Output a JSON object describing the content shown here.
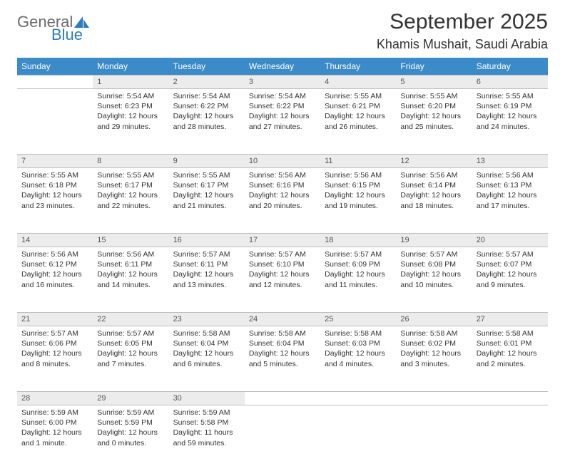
{
  "logo": {
    "word1": "General",
    "word2": "Blue",
    "color1": "#6b6b6b",
    "color2": "#2f7bbf"
  },
  "title": "September 2025",
  "location": "Khamis Mushait, Saudi Arabia",
  "colors": {
    "header_bg": "#3b8bc8",
    "header_text": "#ffffff",
    "daynum_bg": "#ececec",
    "border": "#bfbfbf",
    "body_text": "#333333"
  },
  "weekdays": [
    "Sunday",
    "Monday",
    "Tuesday",
    "Wednesday",
    "Thursday",
    "Friday",
    "Saturday"
  ],
  "weeks": [
    [
      null,
      {
        "d": "1",
        "sr": "5:54 AM",
        "ss": "6:23 PM",
        "dl": "12 hours and 29 minutes."
      },
      {
        "d": "2",
        "sr": "5:54 AM",
        "ss": "6:22 PM",
        "dl": "12 hours and 28 minutes."
      },
      {
        "d": "3",
        "sr": "5:54 AM",
        "ss": "6:22 PM",
        "dl": "12 hours and 27 minutes."
      },
      {
        "d": "4",
        "sr": "5:55 AM",
        "ss": "6:21 PM",
        "dl": "12 hours and 26 minutes."
      },
      {
        "d": "5",
        "sr": "5:55 AM",
        "ss": "6:20 PM",
        "dl": "12 hours and 25 minutes."
      },
      {
        "d": "6",
        "sr": "5:55 AM",
        "ss": "6:19 PM",
        "dl": "12 hours and 24 minutes."
      }
    ],
    [
      {
        "d": "7",
        "sr": "5:55 AM",
        "ss": "6:18 PM",
        "dl": "12 hours and 23 minutes."
      },
      {
        "d": "8",
        "sr": "5:55 AM",
        "ss": "6:17 PM",
        "dl": "12 hours and 22 minutes."
      },
      {
        "d": "9",
        "sr": "5:55 AM",
        "ss": "6:17 PM",
        "dl": "12 hours and 21 minutes."
      },
      {
        "d": "10",
        "sr": "5:56 AM",
        "ss": "6:16 PM",
        "dl": "12 hours and 20 minutes."
      },
      {
        "d": "11",
        "sr": "5:56 AM",
        "ss": "6:15 PM",
        "dl": "12 hours and 19 minutes."
      },
      {
        "d": "12",
        "sr": "5:56 AM",
        "ss": "6:14 PM",
        "dl": "12 hours and 18 minutes."
      },
      {
        "d": "13",
        "sr": "5:56 AM",
        "ss": "6:13 PM",
        "dl": "12 hours and 17 minutes."
      }
    ],
    [
      {
        "d": "14",
        "sr": "5:56 AM",
        "ss": "6:12 PM",
        "dl": "12 hours and 16 minutes."
      },
      {
        "d": "15",
        "sr": "5:56 AM",
        "ss": "6:11 PM",
        "dl": "12 hours and 14 minutes."
      },
      {
        "d": "16",
        "sr": "5:57 AM",
        "ss": "6:11 PM",
        "dl": "12 hours and 13 minutes."
      },
      {
        "d": "17",
        "sr": "5:57 AM",
        "ss": "6:10 PM",
        "dl": "12 hours and 12 minutes."
      },
      {
        "d": "18",
        "sr": "5:57 AM",
        "ss": "6:09 PM",
        "dl": "12 hours and 11 minutes."
      },
      {
        "d": "19",
        "sr": "5:57 AM",
        "ss": "6:08 PM",
        "dl": "12 hours and 10 minutes."
      },
      {
        "d": "20",
        "sr": "5:57 AM",
        "ss": "6:07 PM",
        "dl": "12 hours and 9 minutes."
      }
    ],
    [
      {
        "d": "21",
        "sr": "5:57 AM",
        "ss": "6:06 PM",
        "dl": "12 hours and 8 minutes."
      },
      {
        "d": "22",
        "sr": "5:57 AM",
        "ss": "6:05 PM",
        "dl": "12 hours and 7 minutes."
      },
      {
        "d": "23",
        "sr": "5:58 AM",
        "ss": "6:04 PM",
        "dl": "12 hours and 6 minutes."
      },
      {
        "d": "24",
        "sr": "5:58 AM",
        "ss": "6:04 PM",
        "dl": "12 hours and 5 minutes."
      },
      {
        "d": "25",
        "sr": "5:58 AM",
        "ss": "6:03 PM",
        "dl": "12 hours and 4 minutes."
      },
      {
        "d": "26",
        "sr": "5:58 AM",
        "ss": "6:02 PM",
        "dl": "12 hours and 3 minutes."
      },
      {
        "d": "27",
        "sr": "5:58 AM",
        "ss": "6:01 PM",
        "dl": "12 hours and 2 minutes."
      }
    ],
    [
      {
        "d": "28",
        "sr": "5:59 AM",
        "ss": "6:00 PM",
        "dl": "12 hours and 1 minute."
      },
      {
        "d": "29",
        "sr": "5:59 AM",
        "ss": "5:59 PM",
        "dl": "12 hours and 0 minutes."
      },
      {
        "d": "30",
        "sr": "5:59 AM",
        "ss": "5:58 PM",
        "dl": "11 hours and 59 minutes."
      },
      null,
      null,
      null,
      null
    ]
  ],
  "labels": {
    "sunrise": "Sunrise:",
    "sunset": "Sunset:",
    "daylight": "Daylight:"
  }
}
